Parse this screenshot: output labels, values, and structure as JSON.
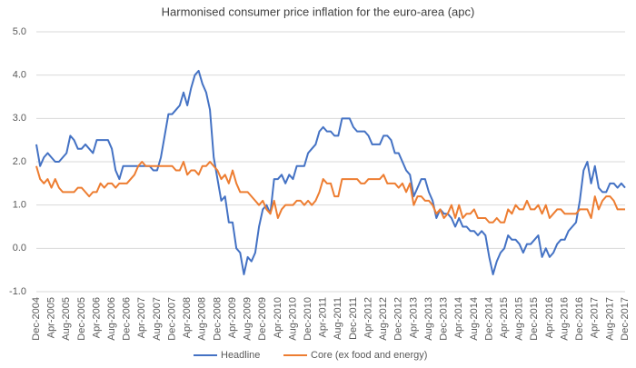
{
  "chart_data": {
    "type": "line",
    "title": "Harmonised consumer price inflation for the euro-area (apc)",
    "categories": [
      "Dec-2004",
      null,
      null,
      null,
      "Apr-2005",
      null,
      null,
      null,
      "Aug-2005",
      null,
      null,
      null,
      "Dec-2005",
      null,
      null,
      null,
      "Apr-2006",
      null,
      null,
      null,
      "Aug-2006",
      null,
      null,
      null,
      "Dec-2006",
      null,
      null,
      null,
      "Apr-2007",
      null,
      null,
      null,
      "Aug-2007",
      null,
      null,
      null,
      "Dec-2007",
      null,
      null,
      null,
      "Apr-2008",
      null,
      null,
      null,
      "Aug-2008",
      null,
      null,
      null,
      "Dec-2008",
      null,
      null,
      null,
      "Apr-2009",
      null,
      null,
      null,
      "Aug-2009",
      null,
      null,
      null,
      "Dec-2009",
      null,
      null,
      null,
      "Apr-2010",
      null,
      null,
      null,
      "Aug-2010",
      null,
      null,
      null,
      "Dec-2010",
      null,
      null,
      null,
      "Apr-2011",
      null,
      null,
      null,
      "Aug-2011",
      null,
      null,
      null,
      "Dec-2011",
      null,
      null,
      null,
      "Apr-2012",
      null,
      null,
      null,
      "Aug-2012",
      null,
      null,
      null,
      "Dec-2012",
      null,
      null,
      null,
      "Apr-2013",
      null,
      null,
      null,
      "Aug-2013",
      null,
      null,
      null,
      "Dec-2013",
      null,
      null,
      null,
      "Apr-2014",
      null,
      null,
      null,
      "Aug-2014",
      null,
      null,
      null,
      "Dec-2014",
      null,
      null,
      null,
      "Apr-2015",
      null,
      null,
      null,
      "Aug-2015",
      null,
      null,
      null,
      "Dec-2015",
      null,
      null,
      null,
      "Apr-2016",
      null,
      null,
      null,
      "Aug-2016",
      null,
      null,
      null,
      "Dec-2016",
      null,
      null,
      null,
      "Apr-2017",
      null,
      null,
      null,
      "Aug-2017",
      null,
      null,
      null,
      "Dec-2017"
    ],
    "series": [
      {
        "name": "Headline",
        "color": "#4472c4",
        "values": [
          2.4,
          1.9,
          2.1,
          2.2,
          2.1,
          2.0,
          2.0,
          2.1,
          2.2,
          2.6,
          2.5,
          2.3,
          2.3,
          2.4,
          2.3,
          2.2,
          2.5,
          2.5,
          2.5,
          2.5,
          2.3,
          1.8,
          1.6,
          1.9,
          1.9,
          1.9,
          1.9,
          1.9,
          1.9,
          1.9,
          1.9,
          1.8,
          1.8,
          2.1,
          2.6,
          3.1,
          3.1,
          3.2,
          3.3,
          3.6,
          3.3,
          3.7,
          4.0,
          4.1,
          3.8,
          3.6,
          3.2,
          2.1,
          1.6,
          1.1,
          1.2,
          0.6,
          0.6,
          0.0,
          -0.1,
          -0.6,
          -0.2,
          -0.3,
          -0.1,
          0.5,
          0.9,
          1.0,
          0.8,
          1.6,
          1.6,
          1.7,
          1.5,
          1.7,
          1.6,
          1.9,
          1.9,
          1.9,
          2.2,
          2.3,
          2.4,
          2.7,
          2.8,
          2.7,
          2.7,
          2.6,
          2.6,
          3.0,
          3.0,
          3.0,
          2.8,
          2.7,
          2.7,
          2.7,
          2.6,
          2.4,
          2.4,
          2.4,
          2.6,
          2.6,
          2.5,
          2.2,
          2.2,
          2.0,
          1.8,
          1.7,
          1.2,
          1.4,
          1.6,
          1.6,
          1.3,
          1.1,
          0.7,
          0.9,
          0.8,
          0.8,
          0.7,
          0.5,
          0.7,
          0.5,
          0.5,
          0.4,
          0.4,
          0.3,
          0.4,
          0.3,
          -0.2,
          -0.6,
          -0.3,
          -0.1,
          0.0,
          0.3,
          0.2,
          0.2,
          0.1,
          -0.1,
          0.1,
          0.1,
          0.2,
          0.3,
          -0.2,
          0.0,
          -0.2,
          -0.1,
          0.1,
          0.2,
          0.2,
          0.4,
          0.5,
          0.6,
          1.1,
          1.8,
          2.0,
          1.5,
          1.9,
          1.4,
          1.3,
          1.3,
          1.5,
          1.5,
          1.4,
          1.5,
          1.4
        ]
      },
      {
        "name": "Core (ex food and energy)",
        "color": "#ed7d31",
        "values": [
          1.9,
          1.6,
          1.5,
          1.6,
          1.4,
          1.6,
          1.4,
          1.3,
          1.3,
          1.3,
          1.3,
          1.4,
          1.4,
          1.3,
          1.2,
          1.3,
          1.3,
          1.5,
          1.4,
          1.5,
          1.5,
          1.4,
          1.5,
          1.5,
          1.5,
          1.6,
          1.7,
          1.9,
          2.0,
          1.9,
          1.9,
          1.9,
          1.9,
          1.9,
          1.9,
          1.9,
          1.9,
          1.8,
          1.8,
          2.0,
          1.7,
          1.8,
          1.8,
          1.7,
          1.9,
          1.9,
          2.0,
          1.9,
          1.8,
          1.6,
          1.7,
          1.5,
          1.8,
          1.5,
          1.3,
          1.3,
          1.3,
          1.2,
          1.1,
          1.0,
          1.1,
          0.9,
          0.8,
          1.1,
          0.7,
          0.9,
          1.0,
          1.0,
          1.0,
          1.1,
          1.1,
          1.0,
          1.1,
          1.0,
          1.1,
          1.3,
          1.6,
          1.5,
          1.5,
          1.2,
          1.2,
          1.6,
          1.6,
          1.6,
          1.6,
          1.6,
          1.5,
          1.5,
          1.6,
          1.6,
          1.6,
          1.6,
          1.7,
          1.5,
          1.5,
          1.5,
          1.4,
          1.5,
          1.3,
          1.5,
          1.0,
          1.2,
          1.2,
          1.1,
          1.1,
          1.0,
          0.8,
          0.9,
          0.7,
          0.8,
          1.0,
          0.7,
          1.0,
          0.7,
          0.8,
          0.8,
          0.9,
          0.7,
          0.7,
          0.7,
          0.6,
          0.6,
          0.7,
          0.6,
          0.6,
          0.9,
          0.8,
          1.0,
          0.9,
          0.9,
          1.1,
          0.9,
          0.9,
          1.0,
          0.8,
          1.0,
          0.7,
          0.8,
          0.9,
          0.9,
          0.8,
          0.8,
          0.8,
          0.8,
          0.9,
          0.9,
          0.9,
          0.7,
          1.2,
          0.9,
          1.1,
          1.2,
          1.2,
          1.1,
          0.9,
          0.9,
          0.9
        ]
      }
    ],
    "ylim": [
      -1,
      5
    ],
    "yticks": [
      {
        "value": -1,
        "label": "-1.0"
      },
      {
        "value": 0,
        "label": "0.0"
      },
      {
        "value": 1,
        "label": "1.0"
      },
      {
        "value": 2,
        "label": "2.0"
      },
      {
        "value": 3,
        "label": "3.0"
      },
      {
        "value": 4,
        "label": "4.0"
      },
      {
        "value": 5,
        "label": "5.0"
      }
    ],
    "grid": true,
    "legend": "bottom"
  }
}
